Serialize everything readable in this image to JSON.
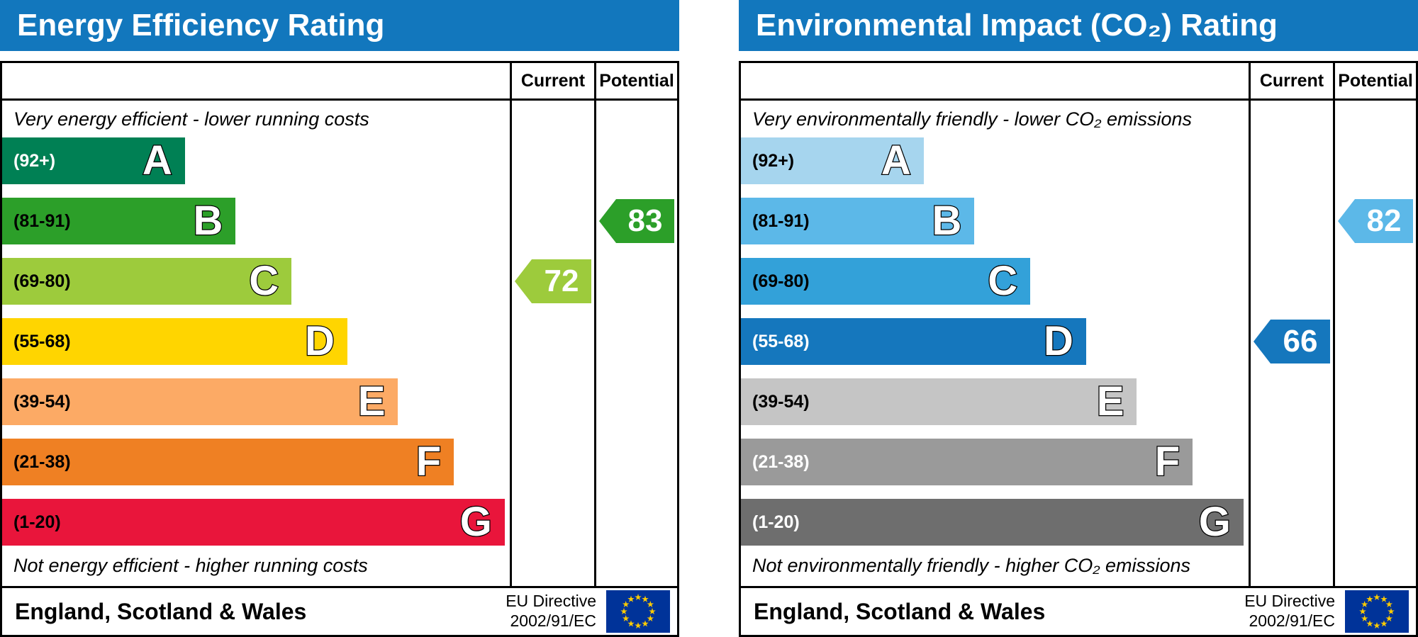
{
  "chart_data": [
    {
      "type": "bar",
      "title": "Energy Efficiency Rating",
      "categories": [
        "A (92+)",
        "B (81-91)",
        "C (69-80)",
        "D (55-68)",
        "E (39-54)",
        "F (21-38)",
        "G (1-20)"
      ],
      "values": [
        36,
        46,
        57,
        68,
        78,
        89,
        99
      ],
      "values_note": "bar lengths as % of plot width (fixed decorative EPC scale)",
      "current": 72,
      "current_band": "C",
      "potential": 83,
      "potential_band": "B",
      "top_note": "Very energy efficient - lower running costs",
      "bottom_note": "Not energy efficient - higher running costs",
      "region": "England, Scotland & Wales",
      "directive": "EU Directive 2002/91/EC",
      "legend_position": "none",
      "grid": false
    },
    {
      "type": "bar",
      "title": "Environmental Impact (CO₂) Rating",
      "categories": [
        "A (92+)",
        "B (81-91)",
        "C (69-80)",
        "D (55-68)",
        "E (39-54)",
        "F (21-38)",
        "G (1-20)"
      ],
      "values": [
        36,
        46,
        57,
        68,
        78,
        89,
        99
      ],
      "values_note": "bar lengths as % of plot width (fixed decorative EPC scale)",
      "current": 66,
      "current_band": "D",
      "potential": 82,
      "potential_band": "B",
      "top_note": "Very environmentally friendly - lower CO₂ emissions",
      "bottom_note": "Not environmentally friendly - higher CO₂ emissions",
      "region": "England, Scotland & Wales",
      "directive": "EU Directive 2002/91/EC",
      "legend_position": "none",
      "grid": false
    }
  ],
  "panels": [
    {
      "title": "Energy Efficiency Rating",
      "header_color": "#1277bd",
      "columns": {
        "current": "Current",
        "potential": "Potential"
      },
      "top_note": "Very energy efficient - lower running costs",
      "bottom_note": "Not energy efficient - higher running costs",
      "bands": [
        {
          "letter": "A",
          "range": "(92+)",
          "color": "#008054",
          "label_color": "#ffffff",
          "width": "36%"
        },
        {
          "letter": "B",
          "range": "(81-91)",
          "color": "#2c9f29",
          "label_color": "#000000",
          "width": "46%"
        },
        {
          "letter": "C",
          "range": "(69-80)",
          "color": "#9dcb3c",
          "label_color": "#000000",
          "width": "57%"
        },
        {
          "letter": "D",
          "range": "(55-68)",
          "color": "#ffd500",
          "label_color": "#000000",
          "width": "68%"
        },
        {
          "letter": "E",
          "range": "(39-54)",
          "color": "#fcaa65",
          "label_color": "#000000",
          "width": "78%"
        },
        {
          "letter": "F",
          "range": "(21-38)",
          "color": "#ef8023",
          "label_color": "#000000",
          "width": "89%"
        },
        {
          "letter": "G",
          "range": "(1-20)",
          "color": "#e9153b",
          "label_color": "#000000",
          "width": "99%"
        }
      ],
      "current": {
        "value": "72",
        "band": "C",
        "color": "#9dcb3c"
      },
      "potential": {
        "value": "83",
        "band": "B",
        "color": "#2c9f29"
      },
      "footer_left": "England, Scotland & Wales",
      "directive_line1": "EU Directive",
      "directive_line2": "2002/91/EC"
    },
    {
      "title": "Environmental Impact (CO₂) Rating",
      "header_color": "#1277bd",
      "columns": {
        "current": "Current",
        "potential": "Potential"
      },
      "top_note": "Very environmentally friendly - lower CO₂ emissions",
      "bottom_note": "Not environmentally friendly - higher CO₂ emissions",
      "bands": [
        {
          "letter": "A",
          "range": "(92+)",
          "color": "#a6d5ee",
          "label_color": "#000000",
          "width": "36%"
        },
        {
          "letter": "B",
          "range": "(81-91)",
          "color": "#5cb8e8",
          "label_color": "#000000",
          "width": "46%"
        },
        {
          "letter": "C",
          "range": "(69-80)",
          "color": "#33a1d9",
          "label_color": "#000000",
          "width": "57%"
        },
        {
          "letter": "D",
          "range": "(55-68)",
          "color": "#1577bd",
          "label_color": "#ffffff",
          "width": "68%"
        },
        {
          "letter": "E",
          "range": "(39-54)",
          "color": "#c5c5c5",
          "label_color": "#000000",
          "width": "78%"
        },
        {
          "letter": "F",
          "range": "(21-38)",
          "color": "#9a9a9a",
          "label_color": "#ffffff",
          "width": "89%"
        },
        {
          "letter": "G",
          "range": "(1-20)",
          "color": "#6e6e6e",
          "label_color": "#ffffff",
          "width": "99%"
        }
      ],
      "current": {
        "value": "66",
        "band": "D",
        "color": "#1577bd"
      },
      "potential": {
        "value": "82",
        "band": "B",
        "color": "#5cb8e8"
      },
      "footer_left": "England, Scotland & Wales",
      "directive_line1": "EU Directive",
      "directive_line2": "2002/91/EC"
    }
  ]
}
